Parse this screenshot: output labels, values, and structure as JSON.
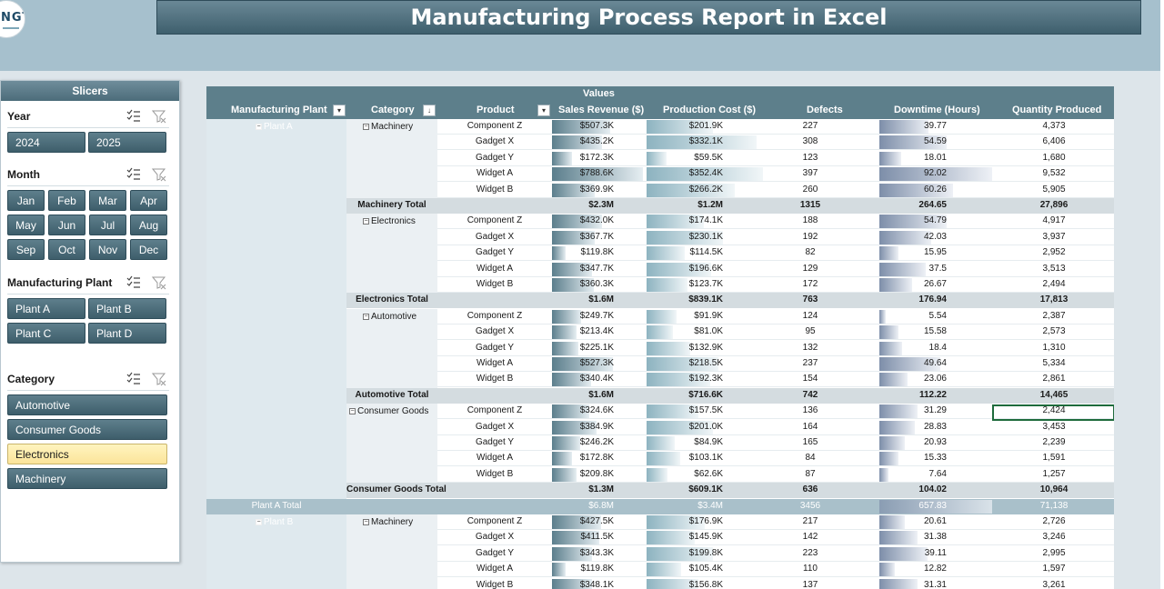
{
  "header": {
    "title": "Manufacturing Process Report in Excel",
    "logo_text": "NGT"
  },
  "slicers": {
    "panel_title": "Slicers",
    "year": {
      "title": "Year",
      "items": [
        "2024",
        "2025"
      ]
    },
    "month": {
      "title": "Month",
      "items": [
        "Jan",
        "Feb",
        "Mar",
        "Apr",
        "May",
        "Jun",
        "Jul",
        "Aug",
        "Sep",
        "Oct",
        "Nov",
        "Dec"
      ]
    },
    "plant": {
      "title": "Manufacturing Plant",
      "items": [
        "Plant A",
        "Plant B",
        "Plant C",
        "Plant D"
      ]
    },
    "category": {
      "title": "Category",
      "items": [
        "Automotive",
        "Consumer Goods",
        "Electronics",
        "Machinery"
      ],
      "selected": "Electronics"
    }
  },
  "pivot": {
    "values_label": "Values",
    "columns": [
      "Manufacturing Plant",
      "Category",
      "Product",
      "Sales Revenue ($)",
      "Production Cost ($)",
      "Defects",
      "Downtime (Hours)",
      "Quantity Produced"
    ],
    "max": {
      "sales": 788.6,
      "cost": 352.4,
      "downtime": 92.02
    },
    "plants": [
      {
        "name": "Plant A",
        "categories": [
          {
            "name": "Machinery",
            "rows": [
              {
                "product": "Component Z",
                "sales": "$507.3K",
                "sales_v": 507.3,
                "cost": "$201.9K",
                "cost_v": 201.9,
                "defects": "227",
                "downtime": "39.77",
                "qty": "4,373"
              },
              {
                "product": "Gadget X",
                "sales": "$435.2K",
                "sales_v": 435.2,
                "cost": "$332.1K",
                "cost_v": 332.1,
                "defects": "308",
                "downtime": "54.59",
                "qty": "6,406"
              },
              {
                "product": "Gadget Y",
                "sales": "$172.3K",
                "sales_v": 172.3,
                "cost": "$59.5K",
                "cost_v": 59.5,
                "defects": "123",
                "downtime": "18.01",
                "qty": "1,680"
              },
              {
                "product": "Widget A",
                "sales": "$788.6K",
                "sales_v": 788.6,
                "cost": "$352.4K",
                "cost_v": 352.4,
                "defects": "397",
                "downtime": "92.02",
                "qty": "9,532"
              },
              {
                "product": "Widget B",
                "sales": "$369.9K",
                "sales_v": 369.9,
                "cost": "$266.2K",
                "cost_v": 266.2,
                "defects": "260",
                "downtime": "60.26",
                "qty": "5,905"
              }
            ],
            "total": {
              "label": "Machinery Total",
              "sales": "$2.3M",
              "cost": "$1.2M",
              "defects": "1315",
              "downtime": "264.65",
              "qty": "27,896"
            }
          },
          {
            "name": "Electronics",
            "rows": [
              {
                "product": "Component Z",
                "sales": "$432.0K",
                "sales_v": 432.0,
                "cost": "$174.1K",
                "cost_v": 174.1,
                "defects": "188",
                "downtime": "54.79",
                "qty": "4,917"
              },
              {
                "product": "Gadget X",
                "sales": "$367.7K",
                "sales_v": 367.7,
                "cost": "$230.1K",
                "cost_v": 230.1,
                "defects": "192",
                "downtime": "42.03",
                "qty": "3,937"
              },
              {
                "product": "Gadget Y",
                "sales": "$119.8K",
                "sales_v": 119.8,
                "cost": "$114.5K",
                "cost_v": 114.5,
                "defects": "82",
                "downtime": "15.95",
                "qty": "2,952"
              },
              {
                "product": "Widget A",
                "sales": "$347.7K",
                "sales_v": 347.7,
                "cost": "$196.6K",
                "cost_v": 196.6,
                "defects": "129",
                "downtime": "37.5",
                "qty": "3,513"
              },
              {
                "product": "Widget B",
                "sales": "$360.3K",
                "sales_v": 360.3,
                "cost": "$123.7K",
                "cost_v": 123.7,
                "defects": "172",
                "downtime": "26.67",
                "qty": "2,494"
              }
            ],
            "total": {
              "label": "Electronics Total",
              "sales": "$1.6M",
              "cost": "$839.1K",
              "defects": "763",
              "downtime": "176.94",
              "qty": "17,813"
            }
          },
          {
            "name": "Automotive",
            "rows": [
              {
                "product": "Component Z",
                "sales": "$249.7K",
                "sales_v": 249.7,
                "cost": "$91.9K",
                "cost_v": 91.9,
                "defects": "124",
                "downtime": "5.54",
                "qty": "2,387"
              },
              {
                "product": "Gadget X",
                "sales": "$213.4K",
                "sales_v": 213.4,
                "cost": "$81.0K",
                "cost_v": 81.0,
                "defects": "95",
                "downtime": "15.58",
                "qty": "2,573"
              },
              {
                "product": "Gadget Y",
                "sales": "$225.1K",
                "sales_v": 225.1,
                "cost": "$132.9K",
                "cost_v": 132.9,
                "defects": "132",
                "downtime": "18.4",
                "qty": "1,310"
              },
              {
                "product": "Widget A",
                "sales": "$527.3K",
                "sales_v": 527.3,
                "cost": "$218.5K",
                "cost_v": 218.5,
                "defects": "237",
                "downtime": "49.64",
                "qty": "5,334"
              },
              {
                "product": "Widget B",
                "sales": "$340.4K",
                "sales_v": 340.4,
                "cost": "$192.3K",
                "cost_v": 192.3,
                "defects": "154",
                "downtime": "23.06",
                "qty": "2,861"
              }
            ],
            "total": {
              "label": "Automotive Total",
              "sales": "$1.6M",
              "cost": "$716.6K",
              "defects": "742",
              "downtime": "112.22",
              "qty": "14,465"
            }
          },
          {
            "name": "Consumer Goods",
            "rows": [
              {
                "product": "Component Z",
                "sales": "$324.6K",
                "sales_v": 324.6,
                "cost": "$157.5K",
                "cost_v": 157.5,
                "defects": "136",
                "downtime": "31.29",
                "qty": "2,424"
              },
              {
                "product": "Gadget X",
                "sales": "$384.9K",
                "sales_v": 384.9,
                "cost": "$201.0K",
                "cost_v": 201.0,
                "defects": "164",
                "downtime": "28.83",
                "qty": "3,453"
              },
              {
                "product": "Gadget Y",
                "sales": "$246.2K",
                "sales_v": 246.2,
                "cost": "$84.9K",
                "cost_v": 84.9,
                "defects": "165",
                "downtime": "20.93",
                "qty": "2,239"
              },
              {
                "product": "Widget A",
                "sales": "$172.8K",
                "sales_v": 172.8,
                "cost": "$103.1K",
                "cost_v": 103.1,
                "defects": "84",
                "downtime": "15.33",
                "qty": "1,591"
              },
              {
                "product": "Widget B",
                "sales": "$209.8K",
                "sales_v": 209.8,
                "cost": "$62.6K",
                "cost_v": 62.6,
                "defects": "87",
                "downtime": "7.64",
                "qty": "1,257"
              }
            ],
            "total": {
              "label": "Consumer Goods Total",
              "sales": "$1.3M",
              "cost": "$609.1K",
              "defects": "636",
              "downtime": "104.02",
              "qty": "10,964"
            }
          }
        ],
        "total": {
          "label": "Plant A Total",
          "sales": "$6.8M",
          "cost": "$3.4M",
          "defects": "3456",
          "downtime": "657.83",
          "downtime_v": 657.83,
          "qty": "71,138"
        }
      },
      {
        "name": "Plant B",
        "categories": [
          {
            "name": "Machinery",
            "rows": [
              {
                "product": "Component Z",
                "sales": "$427.5K",
                "sales_v": 427.5,
                "cost": "$176.9K",
                "cost_v": 176.9,
                "defects": "217",
                "downtime": "20.61",
                "qty": "2,726"
              },
              {
                "product": "Gadget X",
                "sales": "$411.5K",
                "sales_v": 411.5,
                "cost": "$145.9K",
                "cost_v": 145.9,
                "defects": "142",
                "downtime": "31.38",
                "qty": "3,246"
              },
              {
                "product": "Gadget Y",
                "sales": "$343.3K",
                "sales_v": 343.3,
                "cost": "$199.8K",
                "cost_v": 199.8,
                "defects": "223",
                "downtime": "39.11",
                "qty": "2,995"
              },
              {
                "product": "Widget A",
                "sales": "$119.8K",
                "sales_v": 119.8,
                "cost": "$105.4K",
                "cost_v": 105.4,
                "defects": "110",
                "downtime": "12.82",
                "qty": "1,597"
              },
              {
                "product": "Widget B",
                "sales": "$348.1K",
                "sales_v": 348.1,
                "cost": "$156.8K",
                "cost_v": 156.8,
                "defects": "137",
                "downtime": "31.31",
                "qty": "3,261"
              }
            ]
          }
        ]
      }
    ]
  }
}
